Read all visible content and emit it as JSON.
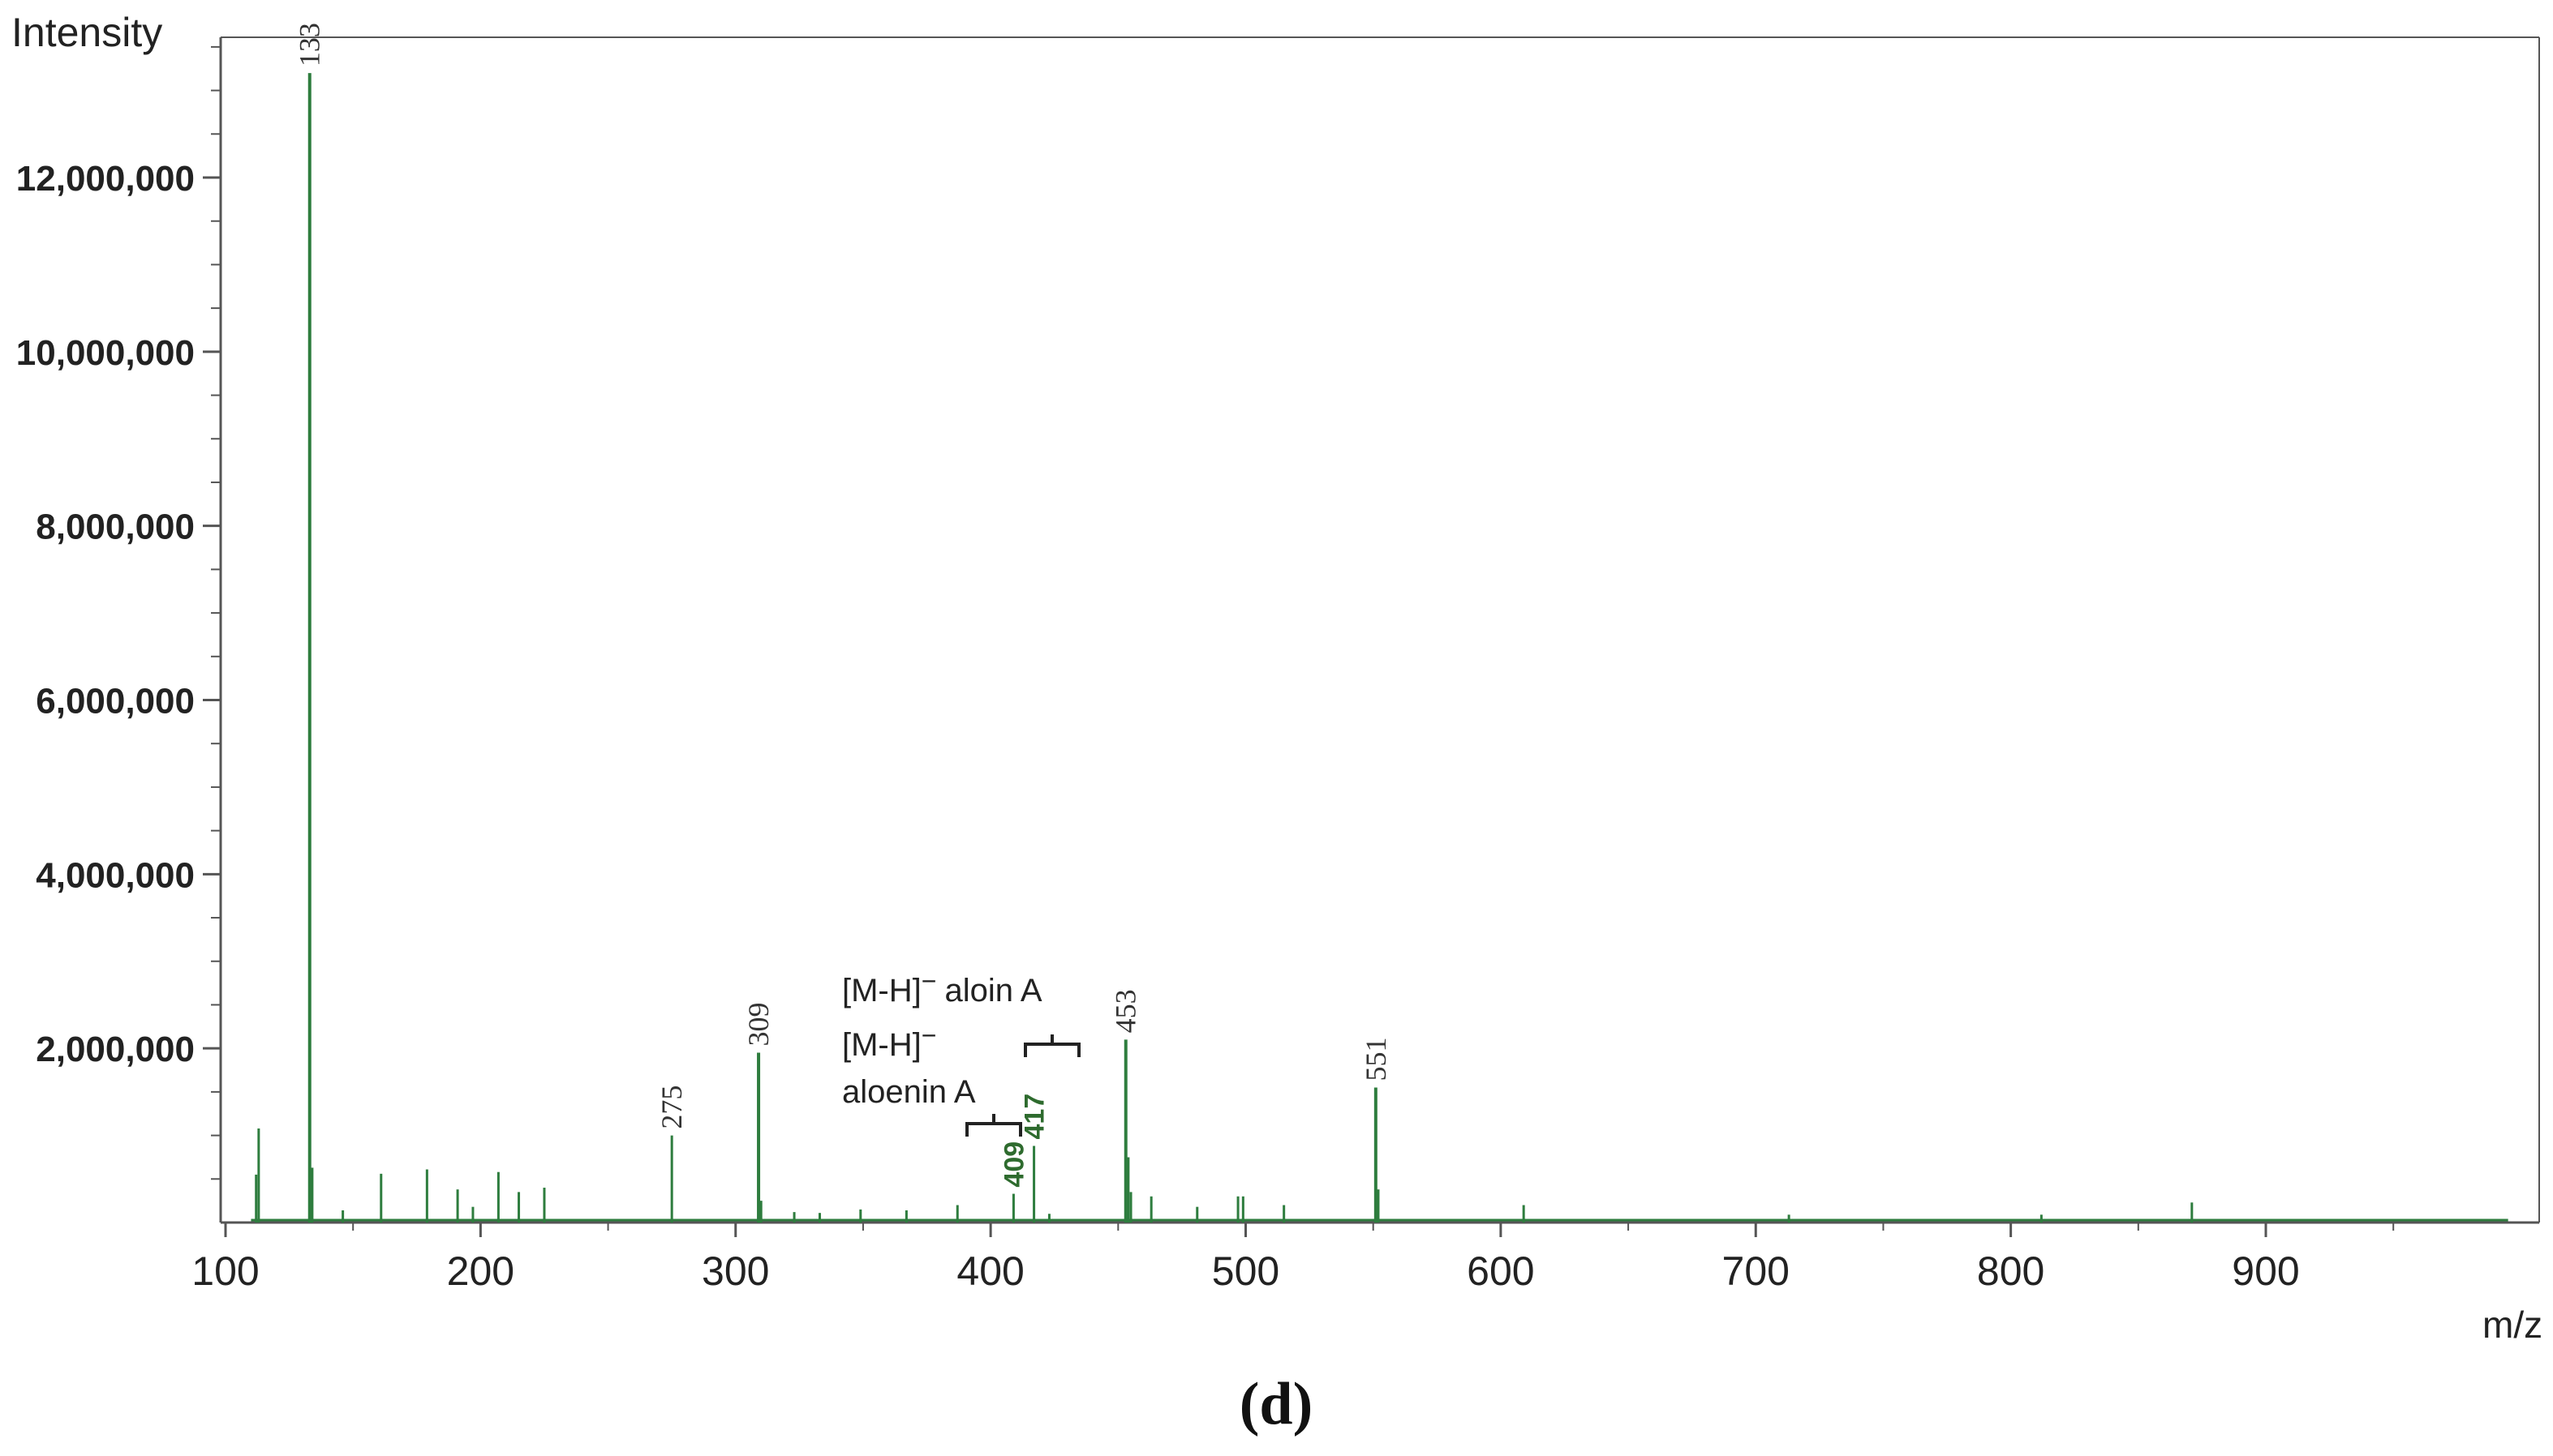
{
  "chart_data": {
    "type": "line",
    "title": "",
    "xlabel": "m/z",
    "ylabel": "Intensity",
    "xlim": [
      100,
      1000
    ],
    "ylim": [
      0,
      13500000
    ],
    "x_ticks": [
      100,
      200,
      300,
      400,
      500,
      600,
      700,
      800,
      900
    ],
    "x_tick_labels": [
      "100",
      "200",
      "300",
      "400",
      "500",
      "600",
      "700",
      "800",
      "900"
    ],
    "y_ticks": [
      2000000,
      4000000,
      6000000,
      8000000,
      10000000,
      12000000
    ],
    "y_tick_labels": [
      "2,000,000",
      "4,000,000",
      "6,000,000",
      "8,000,000",
      "10,000,000",
      "12,000,000"
    ],
    "grid": false,
    "legend": "none",
    "series_color": "#2e7d3e",
    "peaks": [
      {
        "mz": 112,
        "intensity": 550000
      },
      {
        "mz": 113,
        "intensity": 1080000
      },
      {
        "mz": 133,
        "intensity": 13200000
      },
      {
        "mz": 134,
        "intensity": 630000
      },
      {
        "mz": 146,
        "intensity": 140000
      },
      {
        "mz": 161,
        "intensity": 560000
      },
      {
        "mz": 179,
        "intensity": 610000
      },
      {
        "mz": 191,
        "intensity": 380000
      },
      {
        "mz": 197,
        "intensity": 180000
      },
      {
        "mz": 207,
        "intensity": 580000
      },
      {
        "mz": 215,
        "intensity": 350000
      },
      {
        "mz": 225,
        "intensity": 400000
      },
      {
        "mz": 275,
        "intensity": 1000000
      },
      {
        "mz": 309,
        "intensity": 1950000
      },
      {
        "mz": 310,
        "intensity": 250000
      },
      {
        "mz": 323,
        "intensity": 120000
      },
      {
        "mz": 333,
        "intensity": 110000
      },
      {
        "mz": 349,
        "intensity": 150000
      },
      {
        "mz": 367,
        "intensity": 140000
      },
      {
        "mz": 387,
        "intensity": 200000
      },
      {
        "mz": 409,
        "intensity": 330000
      },
      {
        "mz": 417,
        "intensity": 880000
      },
      {
        "mz": 423,
        "intensity": 100000
      },
      {
        "mz": 453,
        "intensity": 2100000
      },
      {
        "mz": 454,
        "intensity": 750000
      },
      {
        "mz": 455,
        "intensity": 350000
      },
      {
        "mz": 463,
        "intensity": 300000
      },
      {
        "mz": 481,
        "intensity": 180000
      },
      {
        "mz": 497,
        "intensity": 300000
      },
      {
        "mz": 499,
        "intensity": 300000
      },
      {
        "mz": 515,
        "intensity": 200000
      },
      {
        "mz": 551,
        "intensity": 1550000
      },
      {
        "mz": 552,
        "intensity": 380000
      },
      {
        "mz": 609,
        "intensity": 200000
      },
      {
        "mz": 713,
        "intensity": 90000
      },
      {
        "mz": 812,
        "intensity": 90000
      },
      {
        "mz": 871,
        "intensity": 230000
      }
    ],
    "peak_labels": [
      {
        "mz": 133,
        "intensity": 13200000,
        "text": "133",
        "color": "#333333",
        "bold": false
      },
      {
        "mz": 275,
        "intensity": 1000000,
        "text": "275",
        "color": "#333333",
        "bold": false
      },
      {
        "mz": 309,
        "intensity": 1950000,
        "text": "309",
        "color": "#333333",
        "bold": false
      },
      {
        "mz": 409,
        "intensity": 330000,
        "text": "409",
        "color": "#2e6b2e",
        "bold": true
      },
      {
        "mz": 417,
        "intensity": 880000,
        "text": "417",
        "color": "#2e6b2e",
        "bold": true
      },
      {
        "mz": 453,
        "intensity": 2100000,
        "text": "453",
        "color": "#333333",
        "bold": false
      },
      {
        "mz": 551,
        "intensity": 1550000,
        "text": "551",
        "color": "#333333",
        "bold": false
      }
    ],
    "annotations": {
      "aloin_label": "[M-H]",
      "aloin_name": "aloin A",
      "aloenin_label": "[M-H]",
      "aloenin_name": "aloenin A",
      "charge_sign": "−"
    },
    "panel_label": "(d)"
  }
}
